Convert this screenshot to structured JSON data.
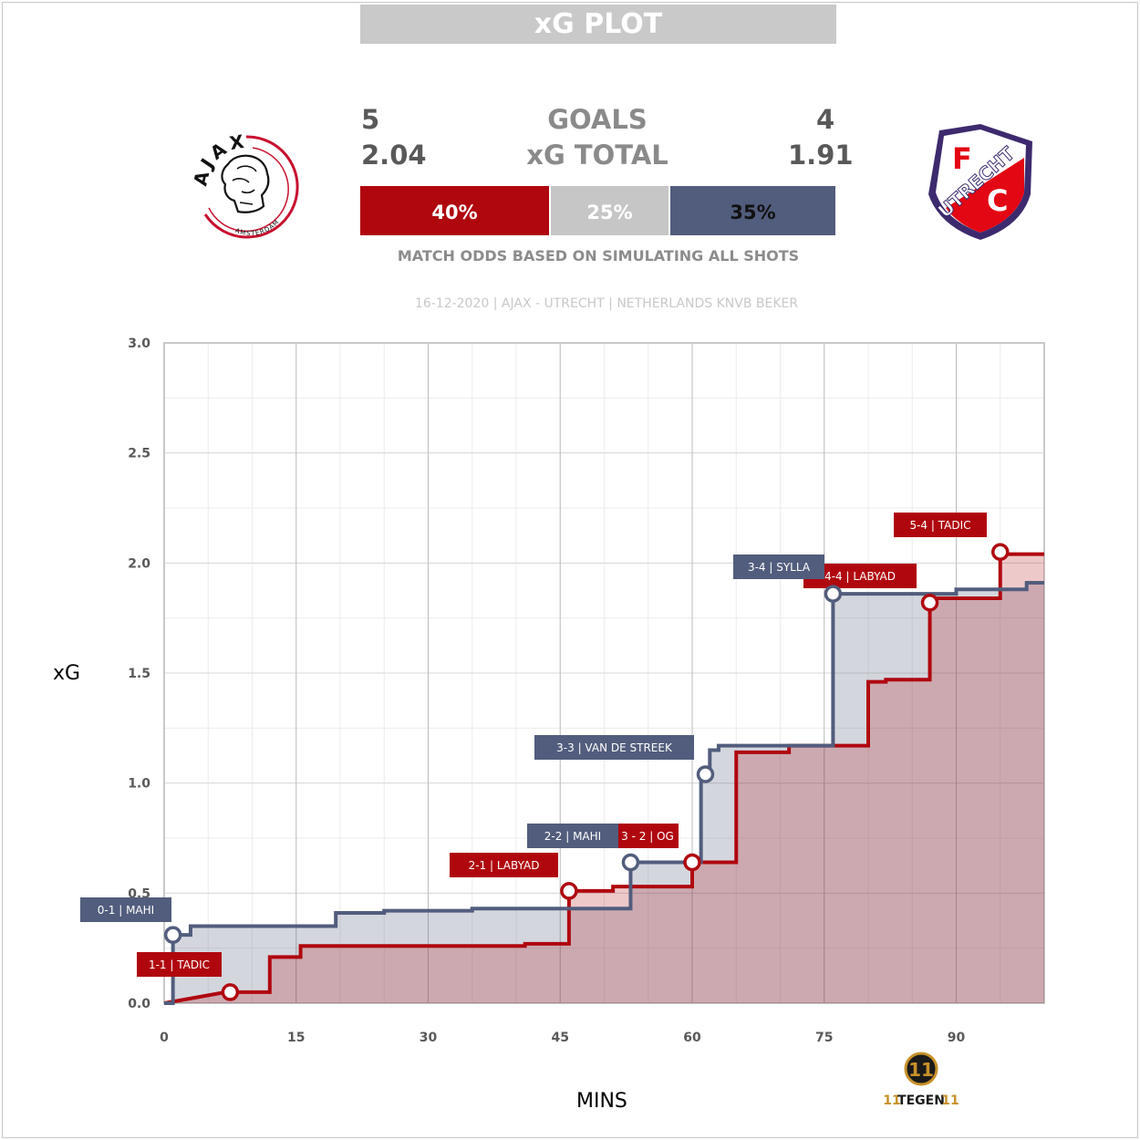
{
  "title": "xG PLOT",
  "home": {
    "goals": "5",
    "xg": "2.04"
  },
  "away": {
    "goals": "4",
    "xg": "1.91"
  },
  "labels": {
    "goals": "GOALS",
    "xg_total": "xG TOTAL"
  },
  "odds": {
    "home": "40%",
    "draw": "25%",
    "away": "35%",
    "note": "MATCH ODDS BASED ON SIMULATING ALL SHOTS"
  },
  "match_info": "16-12-2020 | AJAX - UTRECHT | NETHERLANDS KNVB BEKER",
  "colors": {
    "home": "#b0070f",
    "away": "#525d7d",
    "draw": "#c6c6c6"
  },
  "brand": {
    "logo_left": "AJAX",
    "logo_left_sub": "AMSTERDAM",
    "logo_right_f": "F",
    "logo_right_c": "C",
    "logo_right_name": "UTRECHT",
    "footer_mark": "11",
    "footer_word": "TEGEN"
  },
  "chart_data": {
    "type": "line",
    "xlabel": "MINS",
    "ylabel": "xG",
    "xlim": [
      0,
      100
    ],
    "ylim": [
      0,
      3.0
    ],
    "x_ticks": [
      "0",
      "15",
      "30",
      "45",
      "60",
      "75",
      "90"
    ],
    "y_ticks": [
      "0.0",
      "0.5",
      "1.0",
      "1.5",
      "2.0",
      "2.5",
      "3.0"
    ],
    "series": [
      {
        "team": "home",
        "points": [
          [
            0,
            0
          ],
          [
            7,
            0.05
          ],
          [
            12,
            0.05
          ],
          [
            12,
            0.21
          ],
          [
            15.5,
            0.21
          ],
          [
            15.5,
            0.26
          ],
          [
            41,
            0.26
          ],
          [
            41,
            0.27
          ],
          [
            46,
            0.27
          ],
          [
            46,
            0.51
          ],
          [
            51,
            0.51
          ],
          [
            51,
            0.53
          ],
          [
            60,
            0.53
          ],
          [
            60,
            0.64
          ],
          [
            65,
            0.64
          ],
          [
            65,
            1.14
          ],
          [
            71,
            1.14
          ],
          [
            71,
            1.17
          ],
          [
            80,
            1.17
          ],
          [
            80,
            1.46
          ],
          [
            82,
            1.46
          ],
          [
            82,
            1.47
          ],
          [
            87,
            1.47
          ],
          [
            87,
            1.84
          ],
          [
            95,
            1.84
          ],
          [
            95,
            2.04
          ],
          [
            100,
            2.04
          ]
        ]
      },
      {
        "team": "away",
        "points": [
          [
            0,
            0
          ],
          [
            1,
            0
          ],
          [
            1,
            0.31
          ],
          [
            3,
            0.31
          ],
          [
            3,
            0.35
          ],
          [
            19.5,
            0.35
          ],
          [
            19.5,
            0.41
          ],
          [
            25,
            0.41
          ],
          [
            25,
            0.42
          ],
          [
            35,
            0.42
          ],
          [
            35,
            0.43
          ],
          [
            53,
            0.43
          ],
          [
            53,
            0.64
          ],
          [
            61,
            0.64
          ],
          [
            61,
            1.04
          ],
          [
            62,
            1.04
          ],
          [
            62,
            1.15
          ],
          [
            63,
            1.15
          ],
          [
            63,
            1.17
          ],
          [
            76,
            1.17
          ],
          [
            76,
            1.86
          ],
          [
            90,
            1.86
          ],
          [
            90,
            1.88
          ],
          [
            98,
            1.88
          ],
          [
            98,
            1.91
          ],
          [
            100,
            1.91
          ]
        ]
      }
    ],
    "goals": [
      {
        "team": "away",
        "x": 1,
        "y": 0.31,
        "label": "0-1 | MAHI"
      },
      {
        "team": "home",
        "x": 7.5,
        "y": 0.05,
        "label": "1-1 | TADIC"
      },
      {
        "team": "home",
        "x": 46,
        "y": 0.51,
        "label": "2-1 | LABYAD"
      },
      {
        "team": "away",
        "x": 53,
        "y": 0.64,
        "label": "2-2 | MAHI"
      },
      {
        "team": "home",
        "x": 60,
        "y": 0.64,
        "label": "3 - 2  |  OG"
      },
      {
        "team": "away",
        "x": 61.5,
        "y": 1.04,
        "label": "3-3 | VAN DE STREEK"
      },
      {
        "team": "away",
        "x": 76,
        "y": 1.86,
        "label": "3-4 | SYLLA"
      },
      {
        "team": "home",
        "x": 87,
        "y": 1.82,
        "label": "4-4 | LABYAD"
      },
      {
        "team": "home",
        "x": 95,
        "y": 2.05,
        "label": "5-4 | TADIC"
      }
    ]
  }
}
